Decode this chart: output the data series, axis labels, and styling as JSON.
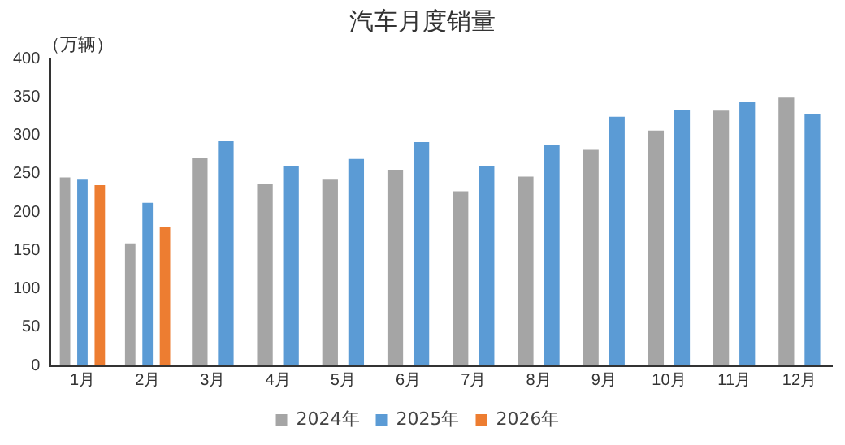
{
  "chart_data": {
    "type": "bar",
    "title": "汽车月度销量",
    "ylabel": "（万辆）",
    "categories": [
      "1月",
      "2月",
      "3月",
      "4月",
      "5月",
      "6月",
      "7月",
      "8月",
      "9月",
      "10月",
      "11月",
      "12月"
    ],
    "series": [
      {
        "name": "2024年",
        "color": "#a5a5a5",
        "values": [
          245,
          159,
          270,
          237,
          242,
          255,
          227,
          246,
          281,
          306,
          332,
          349
        ]
      },
      {
        "name": "2025年",
        "color": "#5b9bd5",
        "values": [
          242,
          212,
          292,
          260,
          269,
          291,
          260,
          287,
          324,
          333,
          344,
          328
        ]
      },
      {
        "name": "2026年",
        "color": "#ed7d31",
        "values": [
          235,
          181,
          null,
          null,
          null,
          null,
          null,
          null,
          null,
          null,
          null,
          null
        ]
      }
    ],
    "ylim": [
      0,
      400
    ],
    "yticks": [
      0,
      50,
      100,
      150,
      200,
      250,
      300,
      350,
      400
    ],
    "grid": false,
    "legend": "bottom"
  }
}
